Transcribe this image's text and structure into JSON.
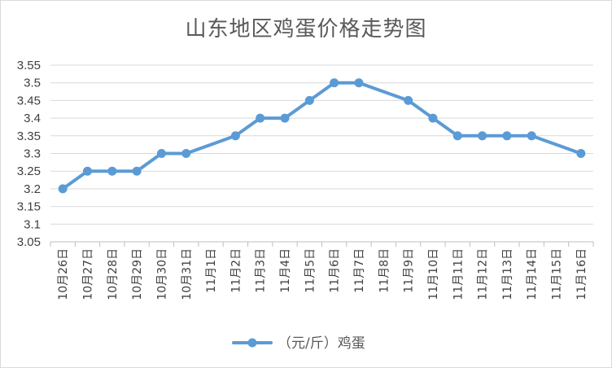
{
  "chart_data": {
    "type": "line",
    "title": "山东地区鸡蛋价格走势图",
    "xlabel": "",
    "ylabel": "",
    "categories": [
      "10月26日",
      "10月27日",
      "10月28日",
      "10月29日",
      "10月30日",
      "10月31日",
      "11月1日",
      "11月2日",
      "11月3日",
      "11月4日",
      "11月5日",
      "11月6日",
      "11月7日",
      "11月8日",
      "11月9日",
      "11月10日",
      "11月11日",
      "11月12日",
      "11月13日",
      "11月14日",
      "11月15日",
      "11月16日"
    ],
    "series": [
      {
        "name": "（元/斤）鸡蛋",
        "values": [
          3.2,
          3.25,
          3.25,
          3.25,
          3.3,
          3.3,
          null,
          3.35,
          3.4,
          3.4,
          3.45,
          3.5,
          3.5,
          null,
          3.45,
          3.4,
          3.35,
          3.35,
          3.35,
          3.35,
          null,
          3.3
        ],
        "color": "#5b9bd5"
      }
    ],
    "ylim": [
      3.05,
      3.55
    ],
    "yticks": [
      "3.05",
      "3.1",
      "3.15",
      "3.2",
      "3.25",
      "3.3",
      "3.35",
      "3.4",
      "3.45",
      "3.5",
      "3.55"
    ],
    "grid": true,
    "legend": "bottom"
  }
}
